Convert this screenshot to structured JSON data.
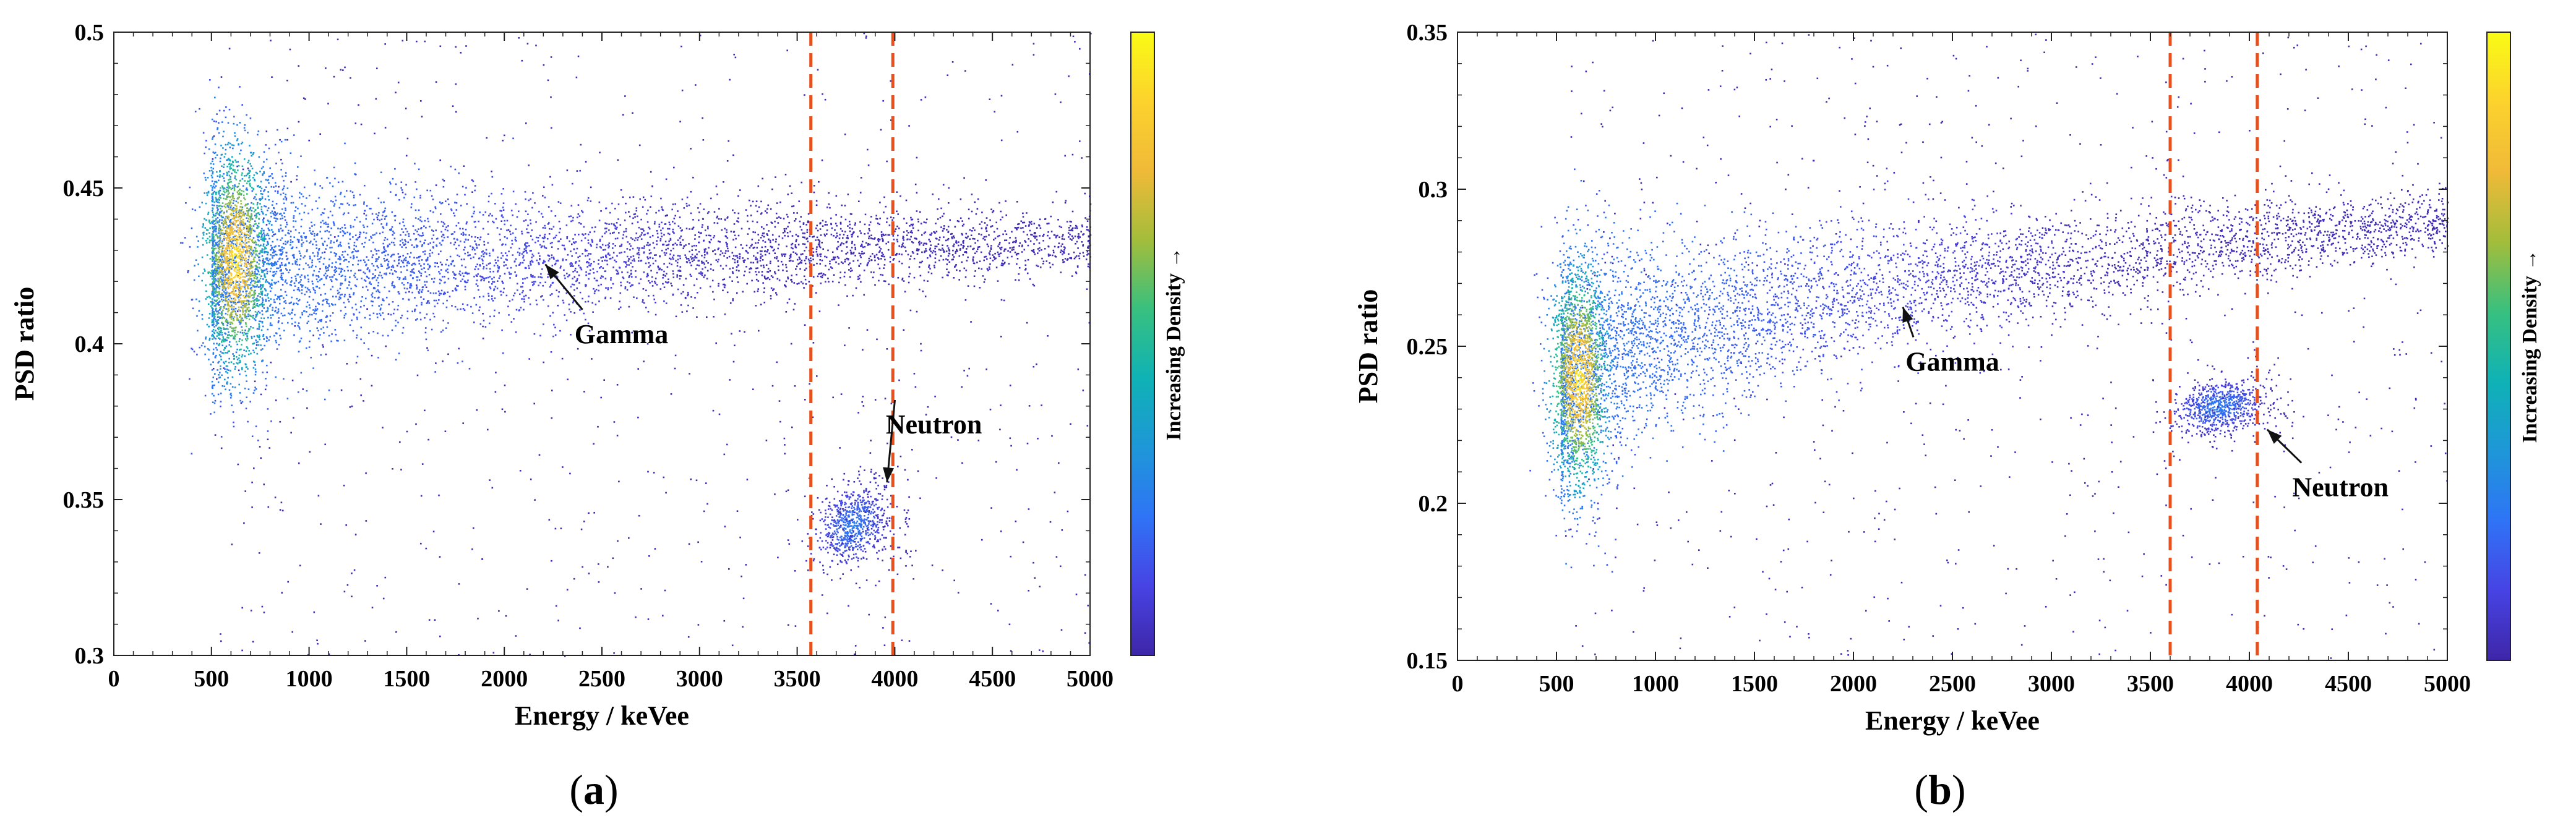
{
  "colors": {
    "cut_line": "#e8501e",
    "axis": "#222222",
    "arrow": "#111111",
    "colormap": [
      "#3e26a8",
      "#4743e4",
      "#2f74f6",
      "#1e97d8",
      "#0fb2b5",
      "#38c07f",
      "#a3bd3b",
      "#f0ba38",
      "#fcd22d",
      "#f9fb15"
    ]
  },
  "chart_data": [
    {
      "type": "scatter",
      "panel_label": "a",
      "xlabel": "Energy / keVee",
      "ylabel": "PSD ratio",
      "xlim": [
        0,
        5000
      ],
      "ylim": [
        0.3,
        0.5
      ],
      "xticks": [
        "0",
        "500",
        "1000",
        "1500",
        "2000",
        "2500",
        "3000",
        "3500",
        "4000",
        "4500",
        "5000"
      ],
      "yticks": [
        "0.3",
        "0.35",
        "0.4",
        "0.45",
        "0.5"
      ],
      "colorbar_label": "Increasing Density →",
      "cut_lines_x": [
        3570,
        3990
      ],
      "gamma_band": {
        "x_start": 500,
        "x_end": 5000,
        "psd_at_start": 0.425,
        "psd_at_end": 0.433,
        "width_at_start": 0.018,
        "width_at_end": 0.005
      },
      "gamma_hotspot": {
        "x": 620,
        "psd": 0.427,
        "x_spread": 90,
        "psd_spread": 0.012
      },
      "neutron_cluster": {
        "x": 3780,
        "psd": 0.342,
        "x_spread": 90,
        "psd_spread": 0.006
      },
      "series": [
        {
          "name": "Gamma",
          "annotation": {
            "text": "Gamma",
            "point": [
              2210,
              0.4255
            ],
            "text_at": [
              2600,
              0.403
            ]
          }
        },
        {
          "name": "Neutron",
          "annotation": {
            "text": "Neutron",
            "point": [
              3960,
              0.3555
            ],
            "text_at": [
              4200,
              0.374
            ]
          }
        }
      ]
    },
    {
      "type": "scatter",
      "panel_label": "b",
      "xlabel": "Energy / keVee",
      "ylabel": "PSD ratio",
      "xlim": [
        0,
        5000
      ],
      "ylim": [
        0.15,
        0.35
      ],
      "xticks": [
        "0",
        "500",
        "1000",
        "1500",
        "2000",
        "2500",
        "3000",
        "3500",
        "4000",
        "4500",
        "5000"
      ],
      "yticks": [
        "0.15",
        "0.2",
        "0.25",
        "0.3",
        "0.35"
      ],
      "colorbar_label": "Increasing Density →",
      "cut_lines_x": [
        3600,
        4040
      ],
      "gamma_band": {
        "x_start": 520,
        "x_end": 5000,
        "psd_at_start": 0.235,
        "psd_at_end": 0.29,
        "width_at_start": 0.02,
        "width_at_end": 0.005
      },
      "gamma_hotspot": {
        "x": 610,
        "psd": 0.24,
        "x_spread": 80,
        "psd_spread": 0.012
      },
      "neutron_cluster": {
        "x": 3840,
        "psd": 0.231,
        "x_spread": 110,
        "psd_spread": 0.004
      },
      "series": [
        {
          "name": "Gamma",
          "annotation": {
            "text": "Gamma",
            "point": [
              2250,
              0.2625
            ],
            "text_at": [
              2500,
              0.245
            ]
          }
        },
        {
          "name": "Neutron",
          "annotation": {
            "text": "Neutron",
            "point": [
              4090,
              0.2235
            ],
            "text_at": [
              4460,
              0.205
            ]
          }
        }
      ]
    }
  ]
}
